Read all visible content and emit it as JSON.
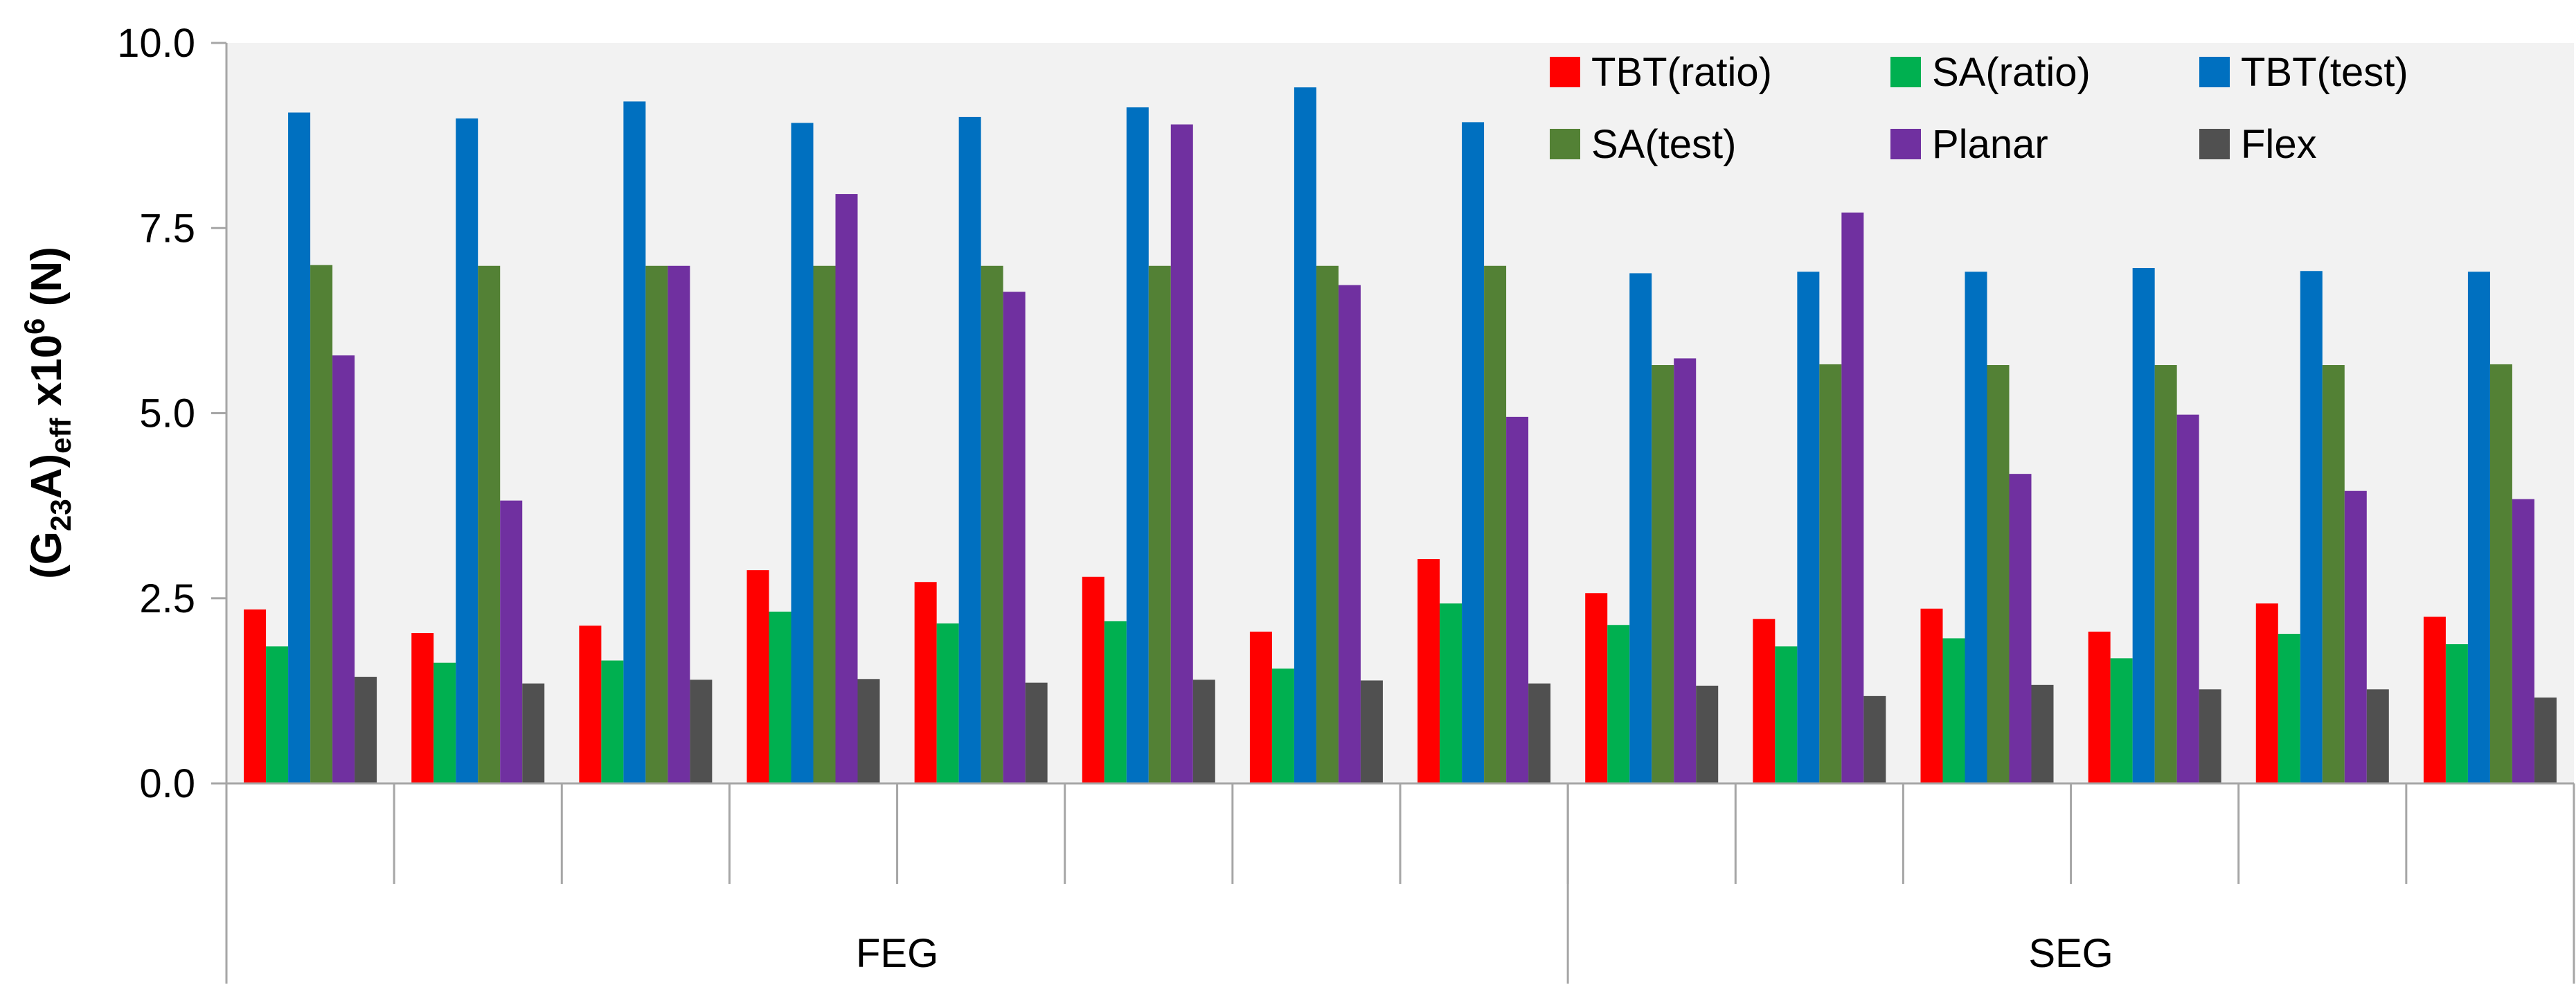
{
  "chart_data": {
    "type": "bar",
    "ylabel": {
      "prefix": "(G",
      "sub1": "23",
      "mid": "A)",
      "sub2": "eff",
      "suffix": " x10",
      "sup": "6",
      "unit": " (N)"
    },
    "ylim": [
      0,
      10
    ],
    "yticks": [
      "0.0",
      "2.5",
      "5.0",
      "7.5",
      "10.0"
    ],
    "grid": false,
    "legend_position": "top-right",
    "categories": [
      "",
      "",
      "",
      "",
      "",
      "",
      "",
      "",
      "",
      "",
      "",
      "",
      "",
      ""
    ],
    "groups": [
      {
        "label": "FEG",
        "count": 8
      },
      {
        "label": "SEG",
        "count": 6
      }
    ],
    "series": [
      {
        "name": "TBT(ratio)",
        "color": "#ff0000",
        "values": [
          2.35,
          2.03,
          2.13,
          2.88,
          2.72,
          2.79,
          2.05,
          3.03,
          2.57,
          2.22,
          2.36,
          2.05,
          2.43,
          2.25
        ]
      },
      {
        "name": "SA(ratio)",
        "color": "#00b050",
        "values": [
          1.85,
          1.63,
          1.66,
          2.32,
          2.16,
          2.19,
          1.55,
          2.43,
          2.14,
          1.85,
          1.96,
          1.69,
          2.02,
          1.88
        ]
      },
      {
        "name": "TBT(test)",
        "color": "#0070c0",
        "values": [
          9.06,
          8.98,
          9.21,
          8.92,
          9.0,
          9.13,
          9.4,
          8.93,
          6.89,
          6.91,
          6.91,
          6.96,
          6.92,
          6.91
        ]
      },
      {
        "name": "SA(test)",
        "color": "#538135",
        "values": [
          7.0,
          6.99,
          6.99,
          6.99,
          6.99,
          6.99,
          6.99,
          6.99,
          5.65,
          5.66,
          5.65,
          5.65,
          5.65,
          5.66
        ]
      },
      {
        "name": "Planar",
        "color": "#7030a0",
        "values": [
          5.78,
          3.82,
          6.99,
          7.96,
          6.64,
          8.9,
          6.73,
          4.95,
          5.74,
          7.71,
          4.18,
          4.98,
          3.95,
          3.84
        ]
      },
      {
        "name": "Flex",
        "color": "#505050",
        "values": [
          1.44,
          1.35,
          1.4,
          1.41,
          1.36,
          1.4,
          1.39,
          1.35,
          1.32,
          1.18,
          1.33,
          1.27,
          1.27,
          1.16
        ]
      }
    ]
  }
}
